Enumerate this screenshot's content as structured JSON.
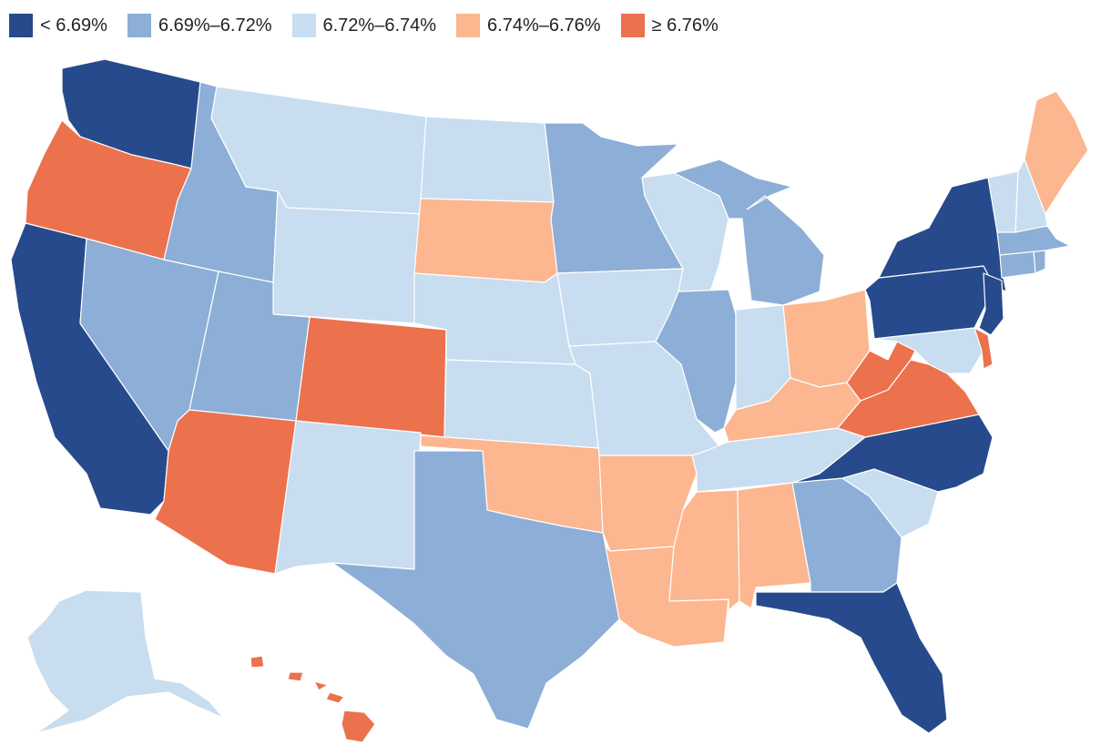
{
  "legend": {
    "classes": [
      {
        "label": "< 6.69%",
        "color": "#264a8c"
      },
      {
        "label": "6.69%–6.72%",
        "color": "#8daed6"
      },
      {
        "label": "6.72%–6.74%",
        "color": "#c8ddef"
      },
      {
        "label": "6.74%–6.76%",
        "color": "#fcb690"
      },
      {
        "label": "≥ 6.76%",
        "color": "#ec714d"
      }
    ]
  },
  "states": {
    "WA": 0,
    "OR": 4,
    "CA": 0,
    "NV": 1,
    "ID": 1,
    "MT": 2,
    "WY": 2,
    "UT": 1,
    "AZ": 4,
    "CO": 4,
    "NM": 2,
    "ND": 2,
    "SD": 3,
    "NE": 2,
    "KS": 2,
    "OK": 3,
    "TX": 1,
    "MN": 1,
    "IA": 2,
    "MO": 2,
    "AR": 3,
    "LA": 3,
    "WI": 2,
    "IL": 1,
    "MI": 1,
    "IN": 2,
    "OH": 3,
    "KY": 3,
    "TN": 2,
    "MS": 3,
    "AL": 3,
    "GA": 1,
    "FL": 0,
    "SC": 2,
    "NC": 0,
    "VA": 4,
    "WV": 4,
    "PA": 0,
    "NY": 0,
    "NJ": 0,
    "DE": 4,
    "MD": 2,
    "CT": 1,
    "RI": 1,
    "MA": 1,
    "VT": 2,
    "NH": 2,
    "ME": 3,
    "AK": 2,
    "HI": 4
  }
}
